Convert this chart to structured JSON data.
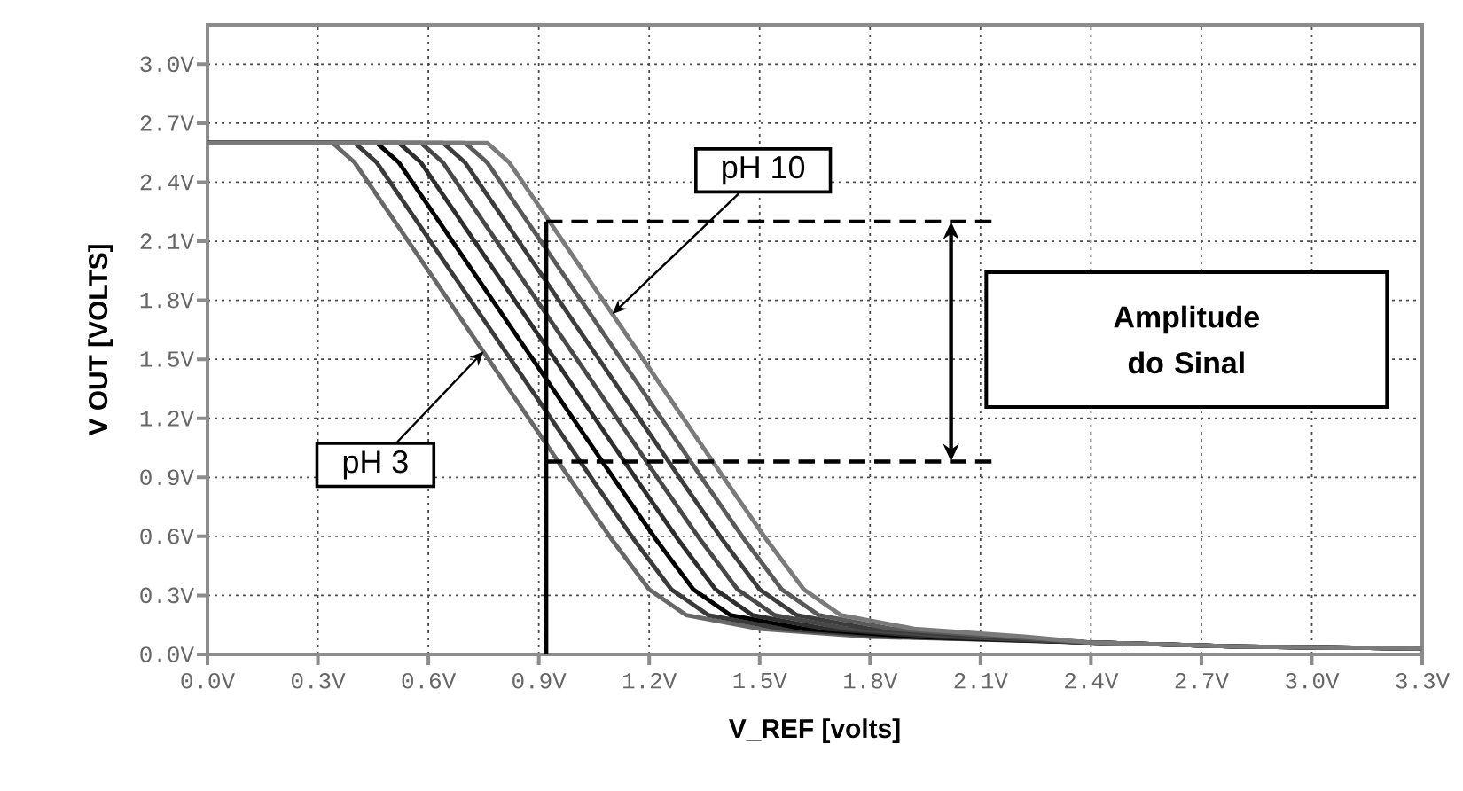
{
  "chart_data": {
    "type": "line",
    "xlabel": "V_REF [volts]",
    "ylabel": "V OUT [VOLTS]",
    "xlim": [
      0,
      3.3
    ],
    "ylim": [
      0,
      3.2
    ],
    "xticks": [
      {
        "value": 0,
        "label": "0.0V"
      },
      {
        "value": 0.3,
        "label": "0.3V"
      },
      {
        "value": 0.6,
        "label": "0.6V"
      },
      {
        "value": 0.9,
        "label": "0.9V"
      },
      {
        "value": 1.2,
        "label": "1.2V"
      },
      {
        "value": 1.5,
        "label": "1.5V"
      },
      {
        "value": 1.8,
        "label": "1.8V"
      },
      {
        "value": 2.1,
        "label": "2.1V"
      },
      {
        "value": 2.4,
        "label": "2.4V"
      },
      {
        "value": 2.7,
        "label": "2.7V"
      },
      {
        "value": 3.0,
        "label": "3.0V"
      },
      {
        "value": 3.3,
        "label": "3.3V"
      }
    ],
    "yticks": [
      {
        "value": 0,
        "label": "0.0V"
      },
      {
        "value": 0.3,
        "label": "0.3V"
      },
      {
        "value": 0.6,
        "label": "0.6V"
      },
      {
        "value": 0.9,
        "label": "0.9V"
      },
      {
        "value": 1.2,
        "label": "1.2V"
      },
      {
        "value": 1.5,
        "label": "1.5V"
      },
      {
        "value": 1.8,
        "label": "1.8V"
      },
      {
        "value": 2.1,
        "label": "2.1V"
      },
      {
        "value": 2.4,
        "label": "2.4V"
      },
      {
        "value": 2.7,
        "label": "2.7V"
      },
      {
        "value": 3.0,
        "label": "3.0V"
      }
    ],
    "grid": true,
    "marker": "none",
    "line_style": "solid",
    "series": [
      {
        "color": "#686868",
        "x": [
          0,
          0.34,
          0.4,
          0.6,
          0.8,
          1.0,
          1.1,
          1.2,
          1.3,
          1.5,
          1.8,
          2.4,
          2.8,
          3.3
        ],
        "values": [
          2.6,
          2.6,
          2.5,
          1.95,
          1.4,
          0.85,
          0.58,
          0.33,
          0.2,
          0.13,
          0.09,
          0.06,
          0.04,
          0.03
        ]
      },
      {
        "color": "#3a3a3a",
        "x": [
          0,
          0.4,
          0.46,
          0.66,
          0.86,
          1.06,
          1.16,
          1.26,
          1.36,
          1.56,
          1.86,
          2.4,
          2.8,
          3.3
        ],
        "values": [
          2.6,
          2.6,
          2.5,
          1.95,
          1.4,
          0.85,
          0.58,
          0.33,
          0.2,
          0.13,
          0.09,
          0.06,
          0.04,
          0.03
        ]
      },
      {
        "color": "#000000",
        "x": [
          0,
          0.46,
          0.52,
          0.72,
          0.92,
          1.12,
          1.22,
          1.32,
          1.42,
          1.62,
          1.92,
          2.4,
          2.8,
          3.3
        ],
        "values": [
          2.6,
          2.6,
          2.5,
          1.95,
          1.4,
          0.85,
          0.58,
          0.33,
          0.2,
          0.13,
          0.09,
          0.06,
          0.04,
          0.03
        ]
      },
      {
        "color": "#2e2e2e",
        "x": [
          0,
          0.52,
          0.58,
          0.78,
          0.98,
          1.18,
          1.28,
          1.38,
          1.48,
          1.68,
          1.98,
          2.4,
          2.8,
          3.3
        ],
        "values": [
          2.6,
          2.6,
          2.5,
          1.95,
          1.4,
          0.85,
          0.58,
          0.33,
          0.2,
          0.13,
          0.09,
          0.06,
          0.04,
          0.03
        ]
      },
      {
        "color": "#484848",
        "x": [
          0,
          0.58,
          0.64,
          0.84,
          1.04,
          1.24,
          1.34,
          1.44,
          1.54,
          1.74,
          2.04,
          2.4,
          2.8,
          3.3
        ],
        "values": [
          2.6,
          2.6,
          2.5,
          1.95,
          1.4,
          0.85,
          0.58,
          0.33,
          0.2,
          0.13,
          0.09,
          0.06,
          0.04,
          0.03
        ]
      },
      {
        "color": "#3c3c3c",
        "x": [
          0,
          0.64,
          0.7,
          0.9,
          1.1,
          1.3,
          1.4,
          1.5,
          1.6,
          1.8,
          2.1,
          2.4,
          2.8,
          3.3
        ],
        "values": [
          2.6,
          2.6,
          2.5,
          1.95,
          1.4,
          0.85,
          0.58,
          0.33,
          0.2,
          0.13,
          0.09,
          0.06,
          0.04,
          0.03
        ]
      },
      {
        "color": "#5a5a5a",
        "x": [
          0,
          0.7,
          0.76,
          0.96,
          1.16,
          1.36,
          1.46,
          1.56,
          1.66,
          1.86,
          2.16,
          2.4,
          2.8,
          3.3
        ],
        "values": [
          2.6,
          2.6,
          2.5,
          1.95,
          1.4,
          0.85,
          0.58,
          0.33,
          0.2,
          0.13,
          0.09,
          0.06,
          0.04,
          0.03
        ]
      },
      {
        "color": "#7a7a7a",
        "x": [
          0,
          0.76,
          0.82,
          1.02,
          1.22,
          1.42,
          1.52,
          1.62,
          1.72,
          1.92,
          2.22,
          2.4,
          2.8,
          3.3
        ],
        "values": [
          2.6,
          2.6,
          2.5,
          1.95,
          1.4,
          0.85,
          0.58,
          0.33,
          0.2,
          0.13,
          0.09,
          0.06,
          0.04,
          0.03
        ]
      },
      {
        "color": "#000000",
        "line_style": "dashed",
        "x": [
          0.92,
          2.13
        ],
        "values": [
          2.2,
          2.2
        ]
      },
      {
        "color": "#000000",
        "line_style": "dashed",
        "x": [
          0.92,
          2.13
        ],
        "values": [
          0.98,
          0.98
        ]
      },
      {
        "color": "#000000",
        "x": [
          0.92,
          0.92
        ],
        "values": [
          0,
          2.2
        ]
      }
    ],
    "annotations": [
      {
        "text": "pH 10",
        "x": 1.1,
        "y": 1.73
      },
      {
        "text": "pH 3",
        "x": 0.75,
        "y": 1.54
      },
      "Amplitude do Sinal"
    ]
  }
}
